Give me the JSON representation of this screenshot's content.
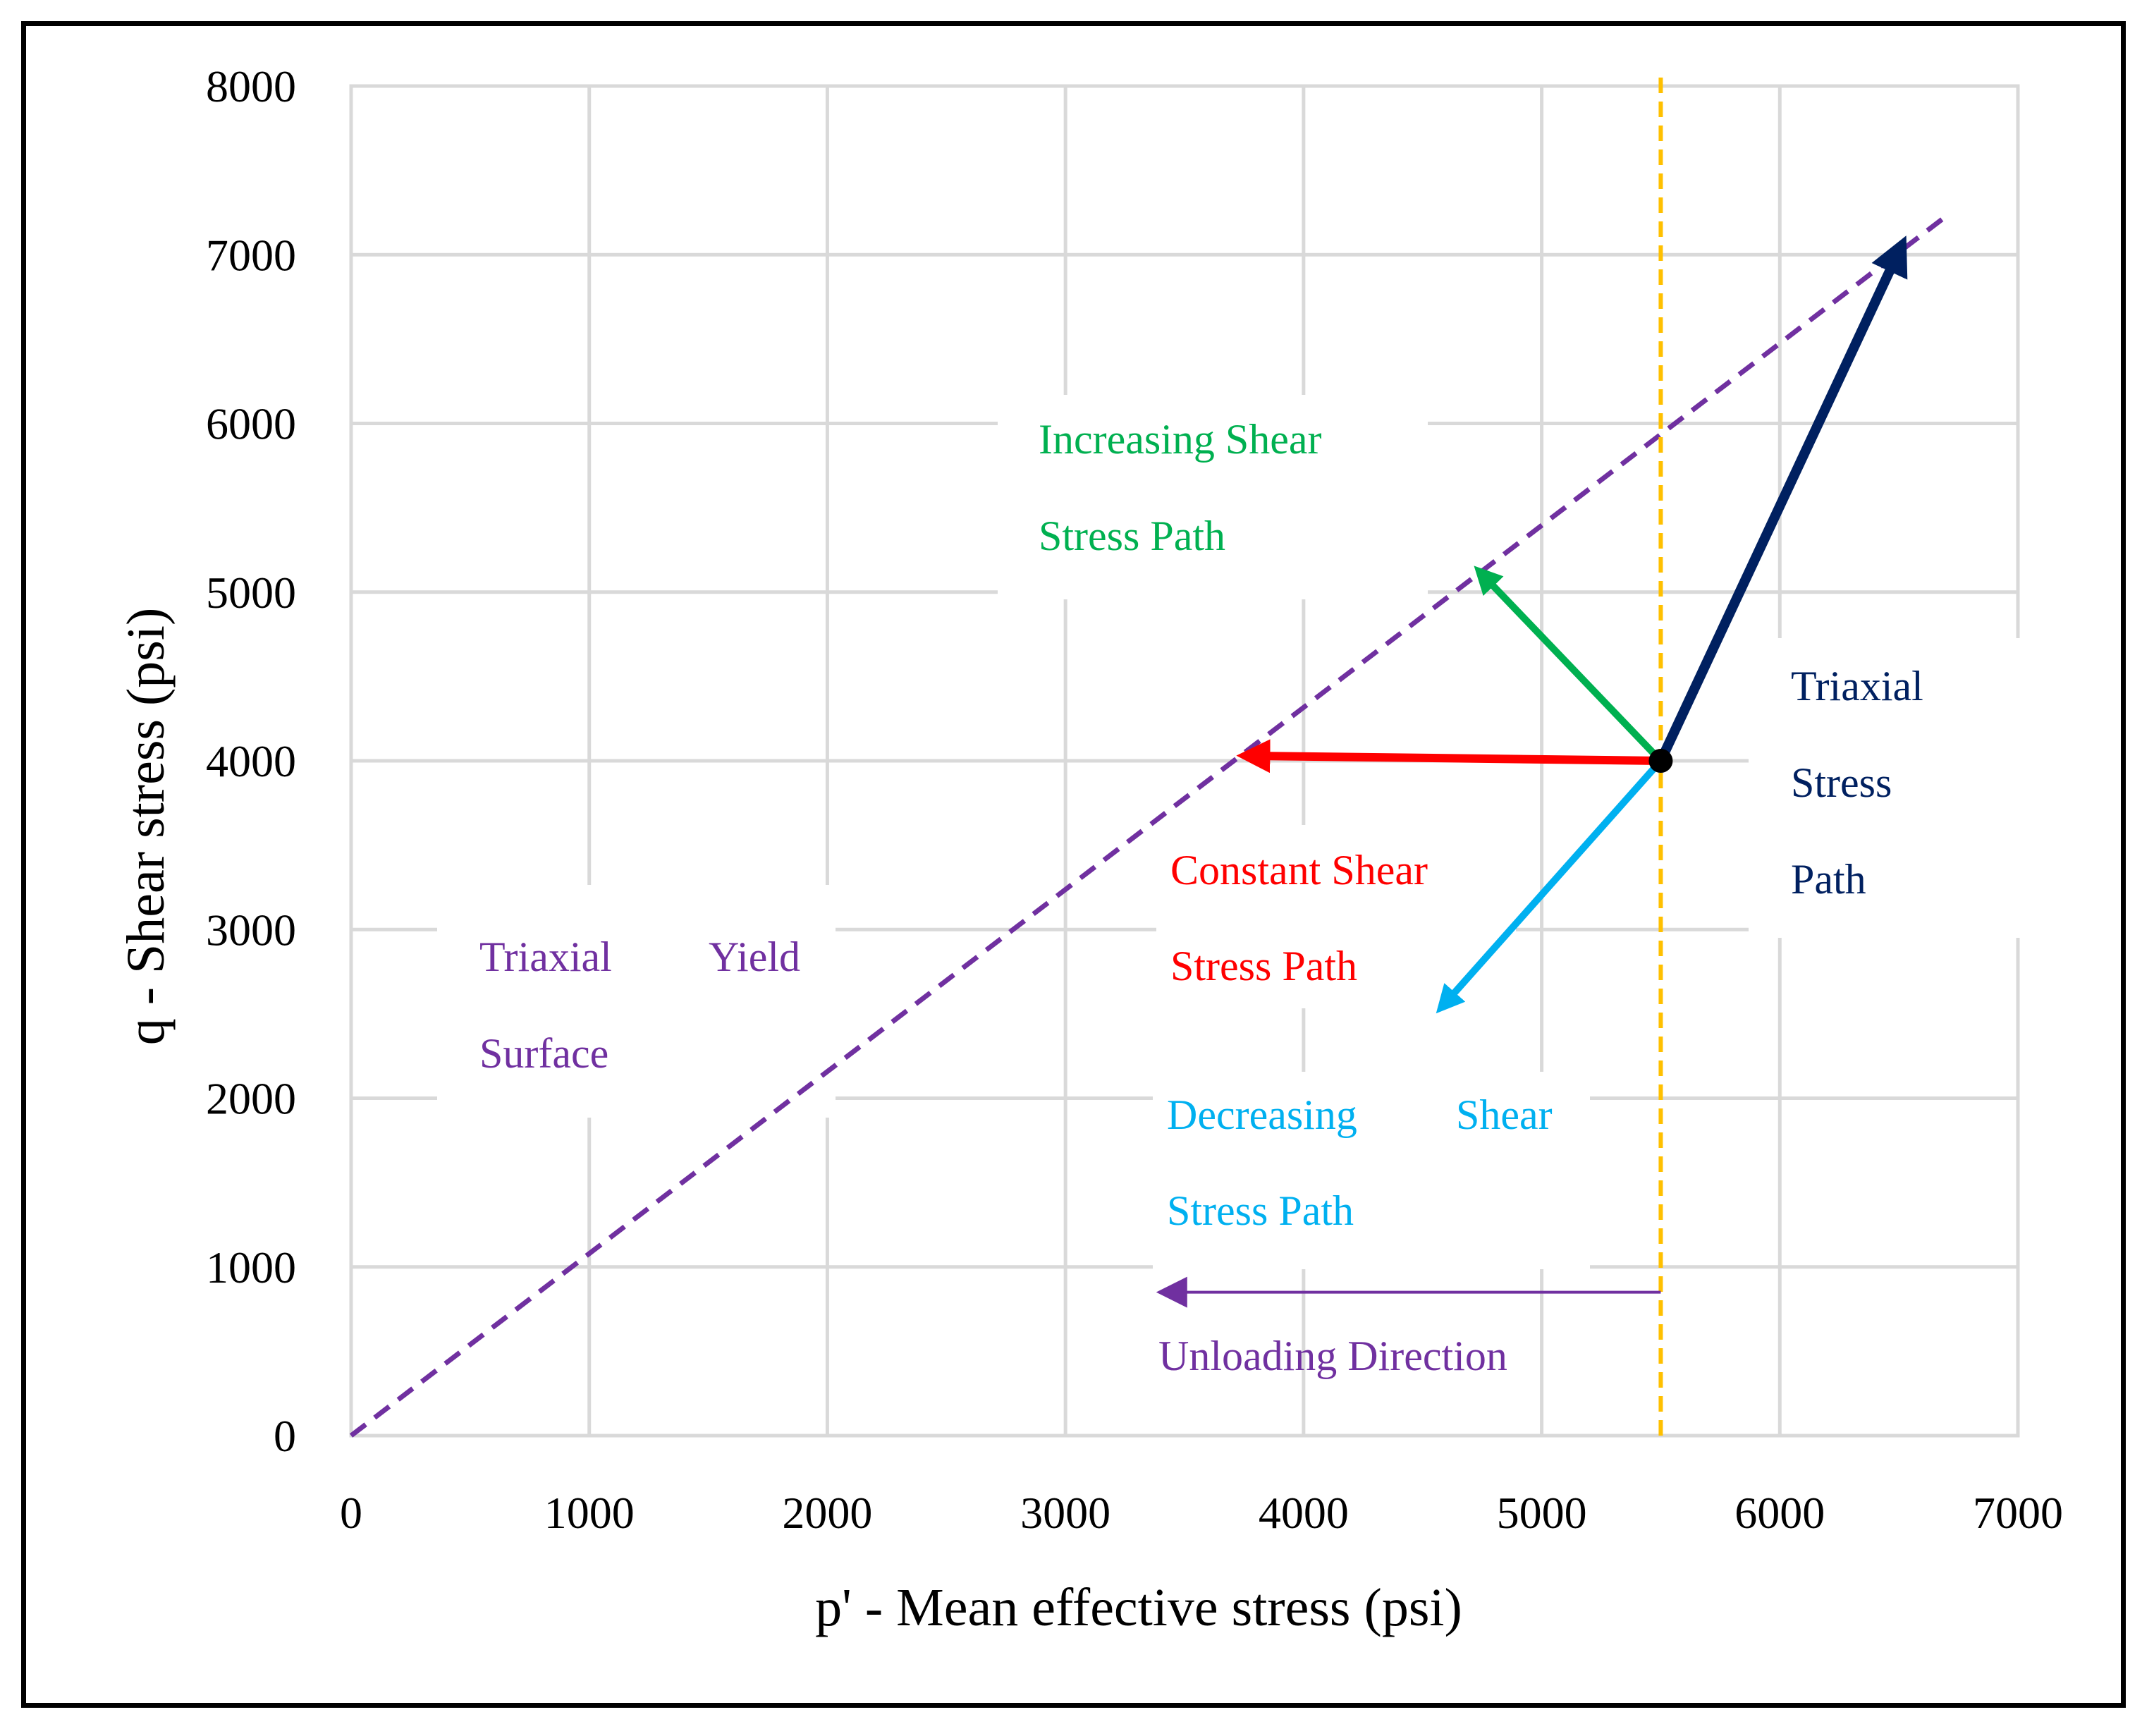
{
  "chart_data": {
    "type": "line",
    "title": "",
    "xlabel": "p' - Mean effective stress (psi)",
    "ylabel": "q - Shear stress (psi)",
    "xlim": [
      0,
      7000
    ],
    "ylim": [
      0,
      8000
    ],
    "x_ticks": [
      "0",
      "1000",
      "2000",
      "3000",
      "4000",
      "5000",
      "6000",
      "7000"
    ],
    "y_ticks": [
      "0",
      "1000",
      "2000",
      "3000",
      "4000",
      "5000",
      "6000",
      "7000",
      "8000"
    ],
    "grid": true,
    "yield_surface": {
      "from": [
        0,
        0
      ],
      "to": [
        6700,
        7230
      ],
      "color": "#7030a0",
      "style": "dashed"
    },
    "reference_line": {
      "x": 5500,
      "color": "#ffc000",
      "style": "dashed"
    },
    "start_point": {
      "x": 5500,
      "y": 4000
    },
    "paths": [
      {
        "name": "Triaxial Stress Path",
        "from": [
          5500,
          4000
        ],
        "to": [
          6510,
          7050
        ],
        "color": "#002060"
      },
      {
        "name": "Increasing Shear Stress Path",
        "from": [
          5500,
          4000
        ],
        "to": [
          4740,
          5120
        ],
        "color": "#00b050"
      },
      {
        "name": "Constant Shear Stress Path",
        "from": [
          5500,
          4000
        ],
        "to": [
          3760,
          4030
        ],
        "color": "#ff0000"
      },
      {
        "name": "Decreasing Shear Stress Path",
        "from": [
          5500,
          4000
        ],
        "to": [
          4580,
          2540
        ],
        "color": "#00b0f0"
      },
      {
        "name": "Unloading Direction",
        "from": [
          5500,
          850
        ],
        "to": [
          3420,
          850
        ],
        "color": "#7030a0"
      }
    ],
    "annotations": {
      "increasing": [
        "Increasing  Shear",
        "Stress Path"
      ],
      "triaxial_path": [
        "Triaxial",
        "Stress",
        "Path"
      ],
      "constant": [
        "Constant  Shear",
        "Stress Path"
      ],
      "yield": [
        "Triaxial",
        "Yield",
        "Surface"
      ],
      "decreasing": [
        "Decreasing",
        "Shear",
        "Stress Path"
      ],
      "unloading": "Unloading Direction"
    }
  }
}
